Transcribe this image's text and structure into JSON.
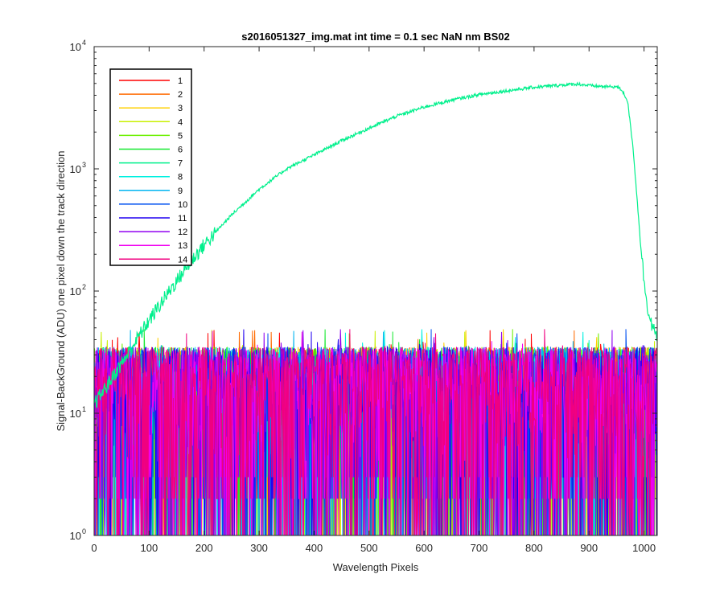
{
  "chart_data": {
    "type": "line",
    "title": "s2016051327_img.mat int time = 0.1 sec  NaN nm BS02",
    "xlabel": "Wavelength Pixels",
    "ylabel": "Signal-BackGround (ADU) one pixel down the track direction",
    "xlim": [
      0,
      1024
    ],
    "ylim": [
      1,
      10000
    ],
    "yscale": "log",
    "grid": false,
    "legend_position": "top-left",
    "x_ticks": [
      "0",
      "100",
      "200",
      "300",
      "400",
      "500",
      "600",
      "700",
      "800",
      "900",
      "1000"
    ],
    "y_ticks": [
      {
        "base": "10",
        "exp": "0"
      },
      {
        "base": "10",
        "exp": "1"
      },
      {
        "base": "10",
        "exp": "2"
      },
      {
        "base": "10",
        "exp": "3"
      },
      {
        "base": "10",
        "exp": "4"
      }
    ],
    "noise_floor": {
      "description_values": "Series 1-6 and 8-14 fluctuate between 1 and about 45 ADU across all pixels",
      "min": 1,
      "typical_max": 35,
      "peak_max": 50
    },
    "series": [
      {
        "name": "1",
        "color": "#ff0000",
        "noise": true
      },
      {
        "name": "2",
        "color": "#ff6a00",
        "noise": true
      },
      {
        "name": "3",
        "color": "#ffd000",
        "noise": true
      },
      {
        "name": "4",
        "color": "#c8f000",
        "noise": true
      },
      {
        "name": "5",
        "color": "#6cf000",
        "noise": true
      },
      {
        "name": "6",
        "color": "#16e830",
        "noise": true
      },
      {
        "name": "7",
        "color": "#00f08c",
        "noise": false,
        "x": [
          0,
          20,
          40,
          60,
          80,
          100,
          120,
          140,
          160,
          180,
          200,
          250,
          300,
          350,
          400,
          450,
          500,
          550,
          600,
          650,
          700,
          750,
          800,
          850,
          880,
          900,
          930,
          950,
          960,
          970,
          980,
          990,
          1000,
          1010,
          1020,
          1023
        ],
        "y": [
          12,
          16,
          22,
          30,
          42,
          58,
          78,
          105,
          140,
          185,
          240,
          420,
          680,
          1000,
          1300,
          1700,
          2150,
          2700,
          3200,
          3650,
          4050,
          4350,
          4650,
          4850,
          4950,
          4800,
          4700,
          4700,
          4400,
          3600,
          1500,
          400,
          120,
          60,
          45,
          40
        ]
      },
      {
        "name": "8",
        "color": "#00f0e0",
        "noise": true
      },
      {
        "name": "9",
        "color": "#00b4f0",
        "noise": true
      },
      {
        "name": "10",
        "color": "#0050f0",
        "noise": true
      },
      {
        "name": "11",
        "color": "#2000f0",
        "noise": true
      },
      {
        "name": "12",
        "color": "#9000f0",
        "noise": true
      },
      {
        "name": "13",
        "color": "#f000f0",
        "noise": true
      },
      {
        "name": "14",
        "color": "#f00080",
        "noise": true
      }
    ]
  }
}
